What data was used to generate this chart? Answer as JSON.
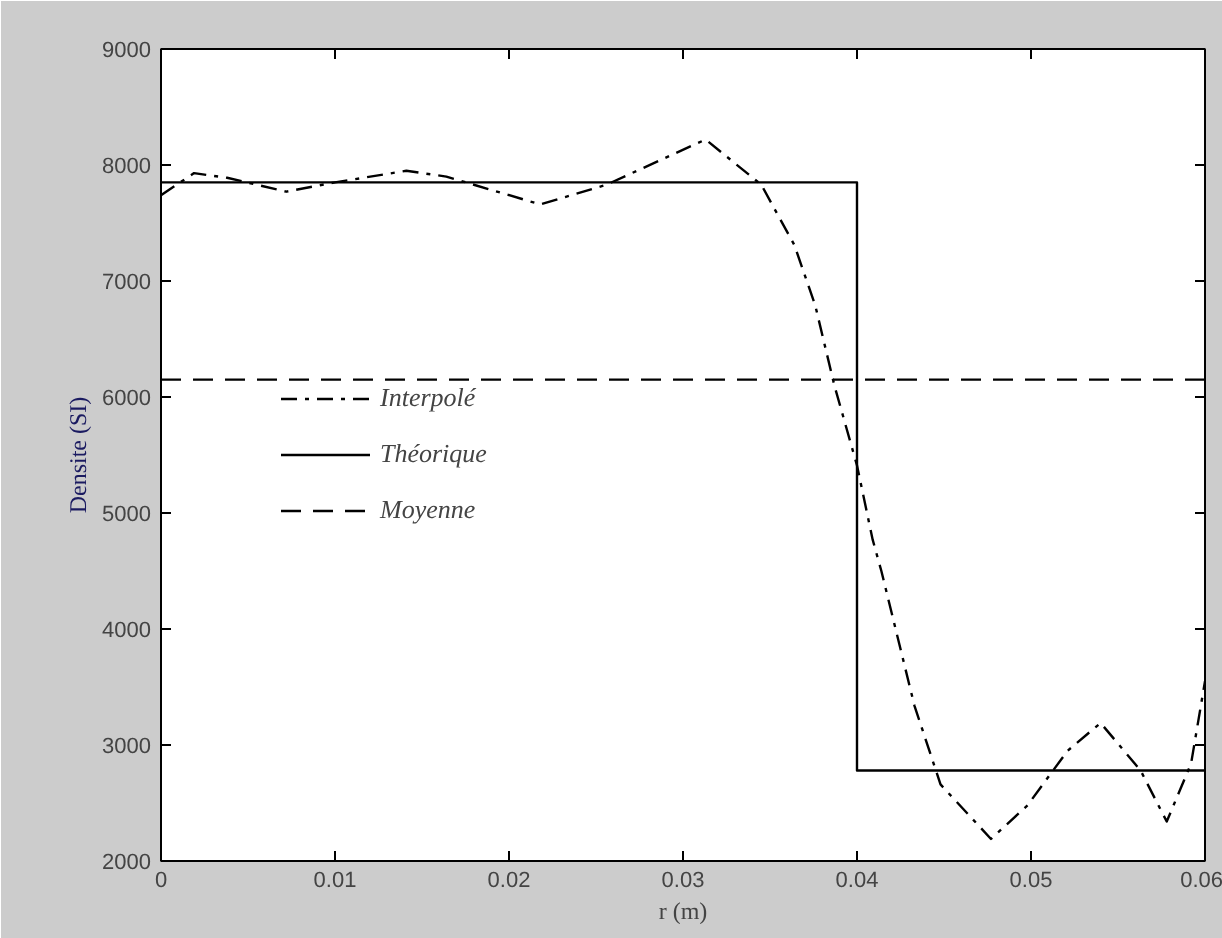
{
  "chart_data": {
    "type": "line",
    "xlabel": "r (m)",
    "ylabel": "Densite (SI)",
    "xlim": [
      0,
      0.06
    ],
    "xticks": [
      0,
      0.01,
      0.02,
      0.03,
      0.04,
      0.05,
      {
        "value": 0.06,
        "label": "0.06"
      }
    ],
    "ylim": [
      2000,
      9000
    ],
    "yticks": [
      2000,
      3000,
      4000,
      5000,
      6000,
      7000,
      8000,
      9000
    ],
    "grid": false,
    "legend": "left",
    "marker": "none",
    "series": [
      {
        "name": "Interpolé",
        "color": "#000000",
        "line_style": "dashdot",
        "x": [
          0,
          0.0019,
          0.0038,
          0.0072,
          0.01,
          0.0141,
          0.0164,
          0.0218,
          0.0256,
          0.0313,
          0.0345,
          0.0364,
          0.0376,
          0.0387,
          0.04,
          0.0409,
          0.0414,
          0.0433,
          0.0448,
          0.0477,
          0.0498,
          0.0521,
          0.054,
          0.0563,
          0.0578,
          0.0592,
          0.06
        ],
        "values": [
          7740,
          7930,
          7890,
          7770,
          7850,
          7950,
          7900,
          7660,
          7830,
          8220,
          7830,
          7310,
          6790,
          6100,
          5410,
          4770,
          4500,
          3340,
          2660,
          2190,
          2480,
          2950,
          3190,
          2780,
          2340,
          2840,
          3550
        ]
      },
      {
        "name": "Théorique",
        "type": "step",
        "color": "#000000",
        "line_style": "solid",
        "x": [
          0,
          0.04,
          0.06
        ],
        "values": [
          7850,
          2780,
          2780
        ]
      },
      {
        "name": "Moyenne",
        "color": "#000000",
        "line_style": "dashed",
        "x": [
          0,
          0.06
        ],
        "values": [
          6150,
          6150
        ]
      }
    ]
  }
}
